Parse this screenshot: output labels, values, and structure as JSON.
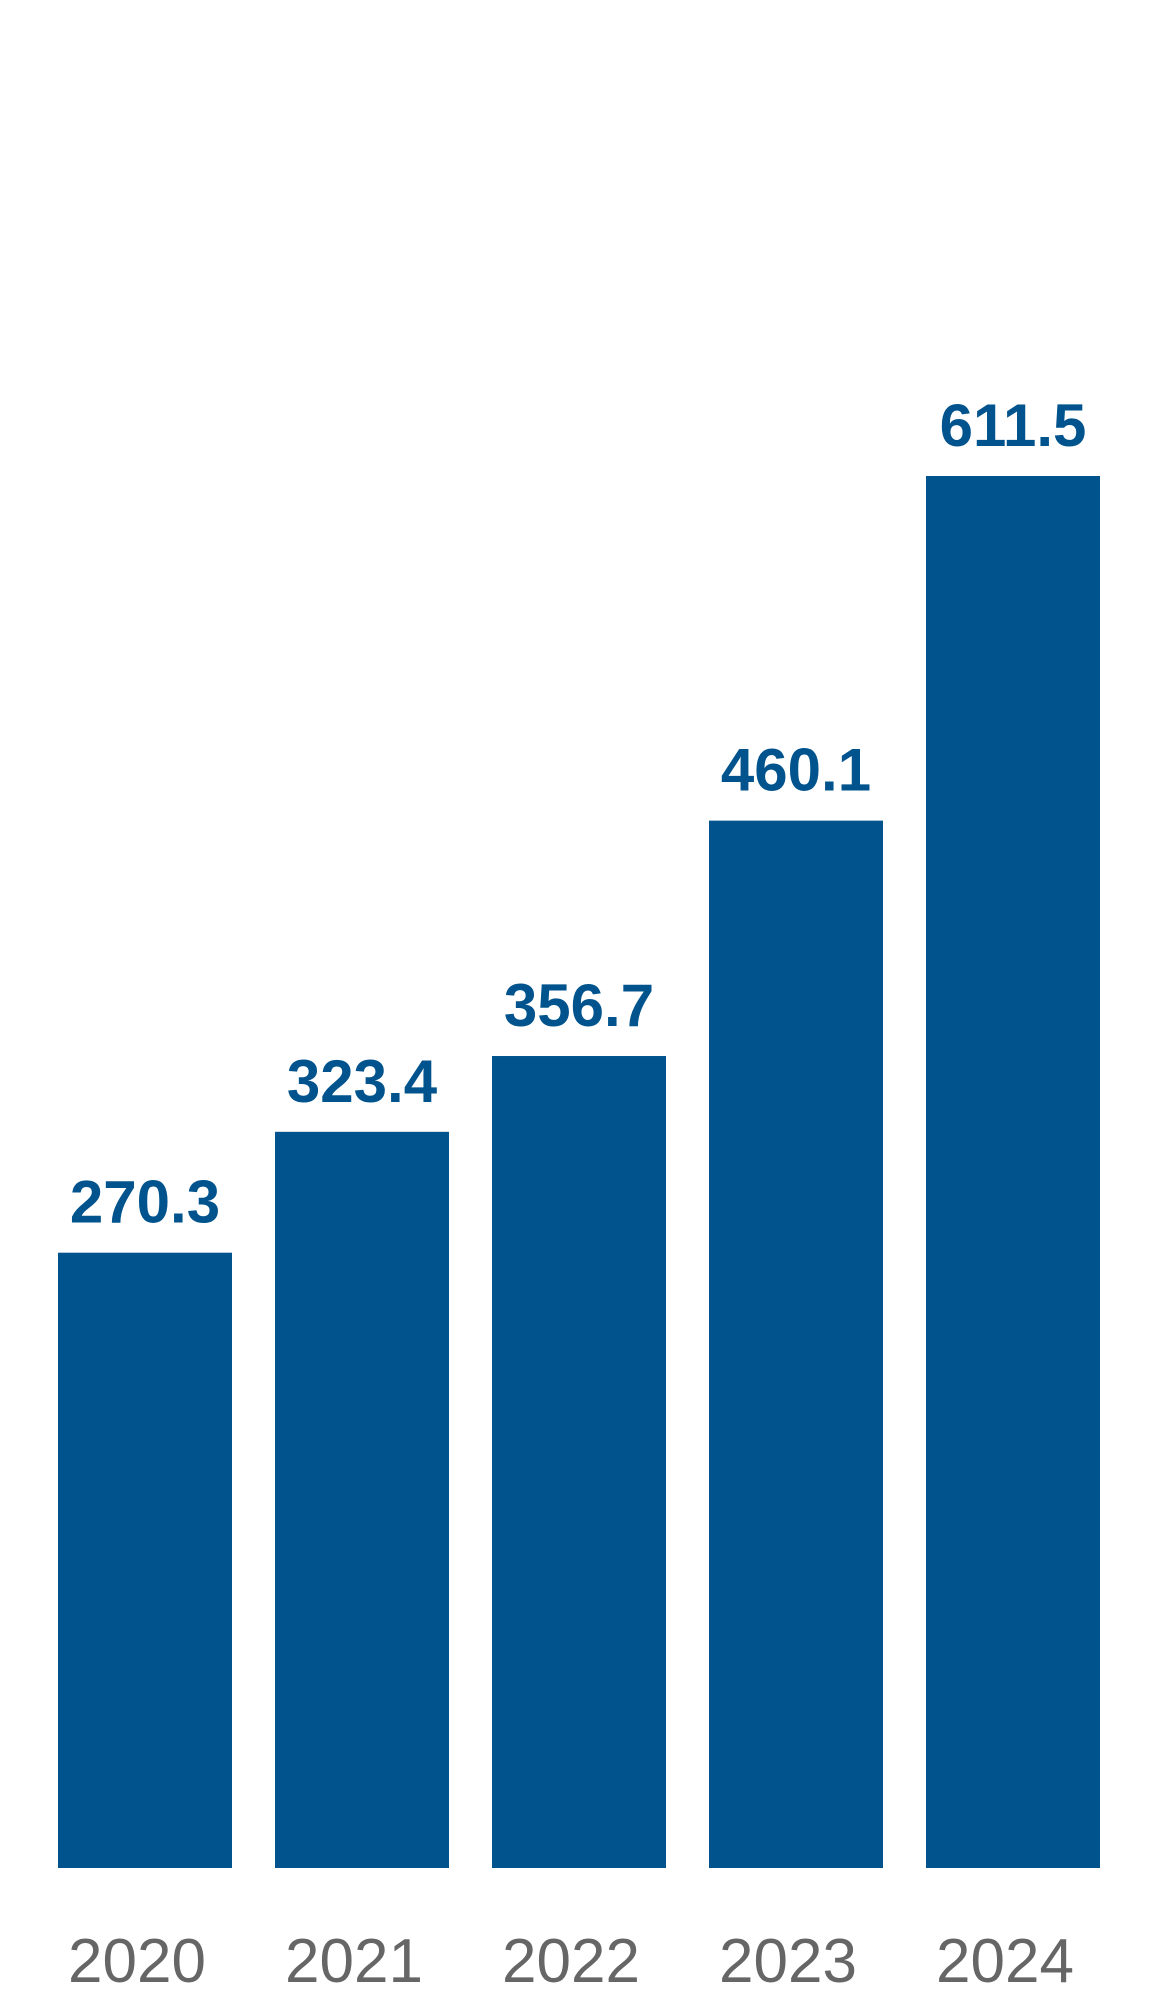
{
  "chart_data": {
    "type": "bar",
    "categories": [
      "2020",
      "2021",
      "2022",
      "2023",
      "2024"
    ],
    "values": [
      270.3,
      323.4,
      356.7,
      460.1,
      611.5
    ],
    "title": "",
    "xlabel": "",
    "ylabel": "",
    "ylim": [
      0,
      611.5
    ],
    "grid": false,
    "legend": "none",
    "data_labels": [
      "270.3",
      "323.4",
      "356.7",
      "460.1",
      "611.5"
    ]
  },
  "colors": {
    "bar": "#00538C",
    "label": "#00538C",
    "tick": "#666666",
    "background": "#FFFFFF"
  }
}
